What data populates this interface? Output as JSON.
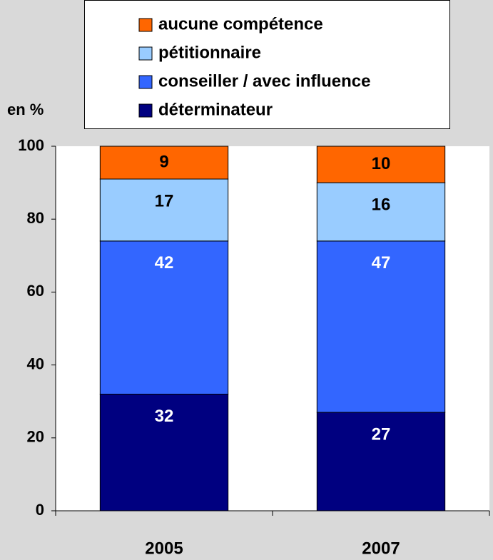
{
  "chart_data": {
    "type": "stacked_bar",
    "y_label": "en %",
    "categories": [
      "2005",
      "2007"
    ],
    "series": [
      {
        "name": "déterminateur",
        "color": "#000080",
        "label_color": "#ffffff",
        "values": [
          32,
          27
        ]
      },
      {
        "name": "conseiller / avec influence",
        "color": "#3366ff",
        "label_color": "#ffffff",
        "values": [
          42,
          47
        ]
      },
      {
        "name": "pétitionnaire",
        "color": "#99ccff",
        "label_color": "#000000",
        "values": [
          17,
          16
        ]
      },
      {
        "name": "aucune compétence",
        "color": "#ff6600",
        "label_color": "#000000",
        "values": [
          9,
          10
        ]
      }
    ],
    "ylim": [
      0,
      100
    ],
    "yticks": [
      0,
      20,
      40,
      60,
      80,
      100
    ],
    "grid": false,
    "legend": "top"
  }
}
